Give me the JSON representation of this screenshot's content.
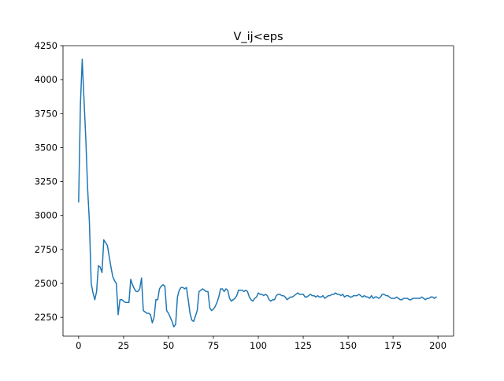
{
  "chart_data": {
    "type": "line",
    "title": "V_ij<eps",
    "xlabel": "",
    "ylabel": "",
    "xlim": [
      -8.7,
      208.7
    ],
    "ylim": [
      2112,
      4250
    ],
    "xticks": [
      0,
      25,
      50,
      75,
      100,
      125,
      150,
      175,
      200
    ],
    "yticks": [
      2250,
      2500,
      2750,
      3000,
      3250,
      3500,
      3750,
      4000,
      4250
    ],
    "grid": false,
    "legend": "none",
    "series": [
      {
        "color": "#1f77b4",
        "points": [
          [
            0,
            3100
          ],
          [
            1,
            3820
          ],
          [
            2,
            4150
          ],
          [
            3,
            3850
          ],
          [
            4,
            3560
          ],
          [
            5,
            3200
          ],
          [
            6,
            2950
          ],
          [
            7,
            2500
          ],
          [
            8,
            2430
          ],
          [
            9,
            2380
          ],
          [
            10,
            2440
          ],
          [
            11,
            2630
          ],
          [
            12,
            2620
          ],
          [
            13,
            2580
          ],
          [
            14,
            2820
          ],
          [
            15,
            2800
          ],
          [
            16,
            2780
          ],
          [
            17,
            2700
          ],
          [
            18,
            2620
          ],
          [
            19,
            2550
          ],
          [
            20,
            2520
          ],
          [
            21,
            2500
          ],
          [
            22,
            2270
          ],
          [
            23,
            2380
          ],
          [
            24,
            2380
          ],
          [
            25,
            2370
          ],
          [
            26,
            2360
          ],
          [
            27,
            2360
          ],
          [
            28,
            2360
          ],
          [
            29,
            2530
          ],
          [
            30,
            2490
          ],
          [
            31,
            2460
          ],
          [
            32,
            2440
          ],
          [
            33,
            2440
          ],
          [
            34,
            2460
          ],
          [
            35,
            2540
          ],
          [
            36,
            2300
          ],
          [
            37,
            2290
          ],
          [
            38,
            2280
          ],
          [
            39,
            2280
          ],
          [
            40,
            2270
          ],
          [
            41,
            2210
          ],
          [
            42,
            2250
          ],
          [
            43,
            2380
          ],
          [
            44,
            2380
          ],
          [
            45,
            2460
          ],
          [
            46,
            2480
          ],
          [
            47,
            2490
          ],
          [
            48,
            2480
          ],
          [
            49,
            2300
          ],
          [
            50,
            2280
          ],
          [
            51,
            2250
          ],
          [
            52,
            2220
          ],
          [
            53,
            2180
          ],
          [
            54,
            2200
          ],
          [
            55,
            2400
          ],
          [
            56,
            2450
          ],
          [
            57,
            2470
          ],
          [
            58,
            2470
          ],
          [
            59,
            2460
          ],
          [
            60,
            2470
          ],
          [
            61,
            2380
          ],
          [
            62,
            2280
          ],
          [
            63,
            2230
          ],
          [
            64,
            2220
          ],
          [
            65,
            2260
          ],
          [
            66,
            2300
          ],
          [
            67,
            2440
          ],
          [
            68,
            2450
          ],
          [
            69,
            2460
          ],
          [
            70,
            2450
          ],
          [
            71,
            2440
          ],
          [
            72,
            2440
          ],
          [
            73,
            2320
          ],
          [
            74,
            2300
          ],
          [
            75,
            2310
          ],
          [
            76,
            2330
          ],
          [
            77,
            2360
          ],
          [
            78,
            2400
          ],
          [
            79,
            2460
          ],
          [
            80,
            2460
          ],
          [
            81,
            2440
          ],
          [
            82,
            2460
          ],
          [
            83,
            2450
          ],
          [
            84,
            2390
          ],
          [
            85,
            2370
          ],
          [
            86,
            2380
          ],
          [
            87,
            2390
          ],
          [
            88,
            2410
          ],
          [
            89,
            2450
          ],
          [
            90,
            2450
          ],
          [
            91,
            2450
          ],
          [
            92,
            2440
          ],
          [
            93,
            2450
          ],
          [
            94,
            2440
          ],
          [
            95,
            2400
          ],
          [
            96,
            2380
          ],
          [
            97,
            2370
          ],
          [
            98,
            2390
          ],
          [
            99,
            2400
          ],
          [
            100,
            2430
          ],
          [
            101,
            2420
          ],
          [
            102,
            2420
          ],
          [
            103,
            2410
          ],
          [
            104,
            2420
          ],
          [
            105,
            2410
          ],
          [
            106,
            2380
          ],
          [
            107,
            2370
          ],
          [
            108,
            2380
          ],
          [
            109,
            2380
          ],
          [
            110,
            2410
          ],
          [
            111,
            2420
          ],
          [
            112,
            2420
          ],
          [
            113,
            2410
          ],
          [
            114,
            2410
          ],
          [
            115,
            2400
          ],
          [
            116,
            2380
          ],
          [
            117,
            2390
          ],
          [
            118,
            2400
          ],
          [
            119,
            2400
          ],
          [
            120,
            2410
          ],
          [
            121,
            2420
          ],
          [
            122,
            2430
          ],
          [
            123,
            2420
          ],
          [
            124,
            2420
          ],
          [
            125,
            2420
          ],
          [
            126,
            2400
          ],
          [
            127,
            2400
          ],
          [
            128,
            2410
          ],
          [
            129,
            2420
          ],
          [
            130,
            2410
          ],
          [
            131,
            2410
          ],
          [
            132,
            2400
          ],
          [
            133,
            2410
          ],
          [
            134,
            2400
          ],
          [
            135,
            2400
          ],
          [
            136,
            2410
          ],
          [
            137,
            2390
          ],
          [
            138,
            2400
          ],
          [
            139,
            2410
          ],
          [
            140,
            2410
          ],
          [
            141,
            2420
          ],
          [
            142,
            2420
          ],
          [
            143,
            2430
          ],
          [
            144,
            2420
          ],
          [
            145,
            2420
          ],
          [
            146,
            2410
          ],
          [
            147,
            2420
          ],
          [
            148,
            2400
          ],
          [
            149,
            2410
          ],
          [
            150,
            2410
          ],
          [
            151,
            2400
          ],
          [
            152,
            2400
          ],
          [
            153,
            2410
          ],
          [
            154,
            2410
          ],
          [
            155,
            2410
          ],
          [
            156,
            2420
          ],
          [
            157,
            2410
          ],
          [
            158,
            2400
          ],
          [
            159,
            2410
          ],
          [
            160,
            2400
          ],
          [
            161,
            2400
          ],
          [
            162,
            2390
          ],
          [
            163,
            2410
          ],
          [
            164,
            2390
          ],
          [
            165,
            2400
          ],
          [
            166,
            2400
          ],
          [
            167,
            2390
          ],
          [
            168,
            2400
          ],
          [
            169,
            2420
          ],
          [
            170,
            2420
          ],
          [
            171,
            2410
          ],
          [
            172,
            2410
          ],
          [
            173,
            2400
          ],
          [
            174,
            2390
          ],
          [
            175,
            2390
          ],
          [
            176,
            2390
          ],
          [
            177,
            2400
          ],
          [
            178,
            2390
          ],
          [
            179,
            2380
          ],
          [
            180,
            2380
          ],
          [
            181,
            2390
          ],
          [
            182,
            2390
          ],
          [
            183,
            2390
          ],
          [
            184,
            2380
          ],
          [
            185,
            2380
          ],
          [
            186,
            2390
          ],
          [
            187,
            2390
          ],
          [
            188,
            2390
          ],
          [
            189,
            2390
          ],
          [
            190,
            2390
          ],
          [
            191,
            2400
          ],
          [
            192,
            2390
          ],
          [
            193,
            2380
          ],
          [
            194,
            2390
          ],
          [
            195,
            2390
          ],
          [
            196,
            2400
          ],
          [
            197,
            2400
          ],
          [
            198,
            2390
          ],
          [
            199,
            2400
          ]
        ]
      }
    ]
  }
}
